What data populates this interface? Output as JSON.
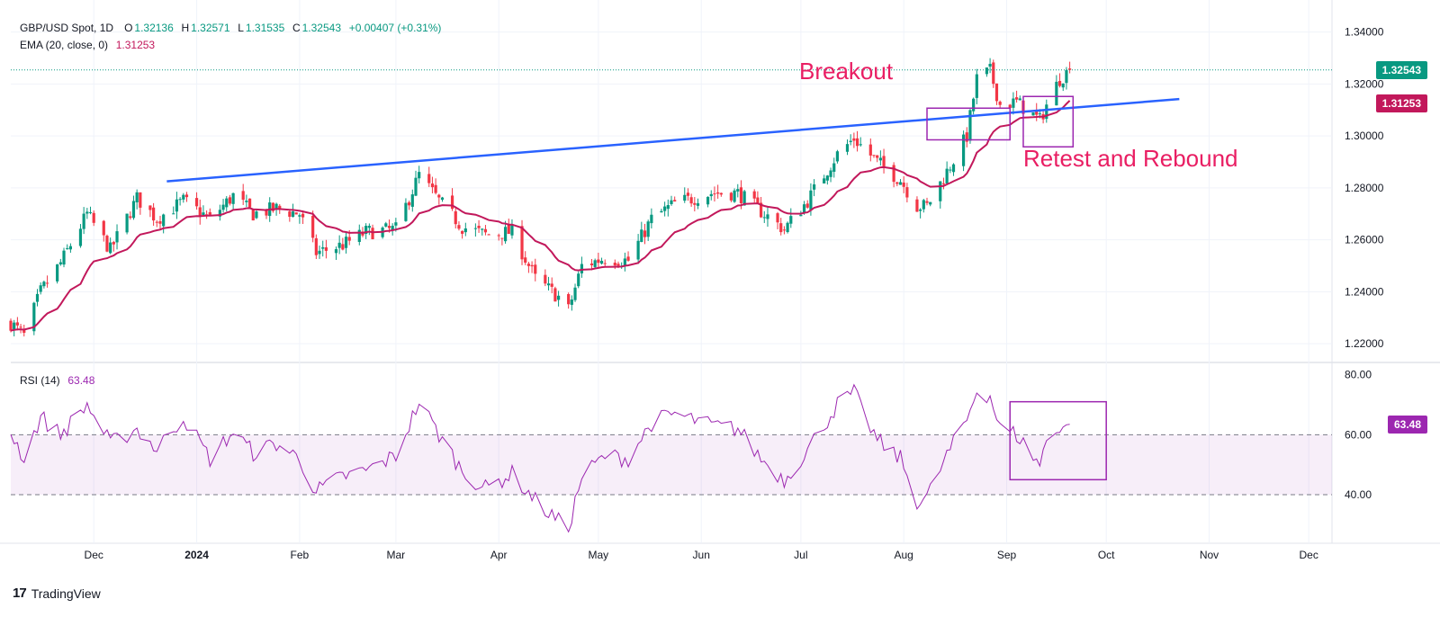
{
  "header": {
    "symbol": "GBP/USD Spot, 1D",
    "open_label": "O",
    "open": "1.32136",
    "high_label": "H",
    "high": "1.32571",
    "low_label": "L",
    "low": "1.31535",
    "close_label": "C",
    "close": "1.32543",
    "change": "+0.00407 (+0.31%)",
    "ema_label": "EMA (20, close, 0)",
    "ema_value": "1.31253",
    "rsi_label": "RSI (14)",
    "rsi_value": "63.48"
  },
  "annotations": {
    "breakout": "Breakout",
    "retest": "Retest and Rebound"
  },
  "price_tags": {
    "last": "1.32543",
    "ema": "1.31253",
    "rsi": "63.48"
  },
  "colors": {
    "up": "#089981",
    "down": "#f23645",
    "ema": "#c2185b",
    "trendline": "#2962ff",
    "rsi": "#9c27b0",
    "box": "#9c27b0",
    "annotation": "#e91e63"
  },
  "branding": {
    "name": "TradingView",
    "logo_text": "17"
  },
  "chart_data": [
    {
      "type": "candlestick",
      "title": "GBP/USD Spot, 1D",
      "y_ticks": [
        "1.34000",
        "1.32000",
        "1.30000",
        "1.28000",
        "1.26000",
        "1.24000",
        "1.22000"
      ],
      "ylim": [
        1.2145,
        1.3475
      ],
      "x_ticks": [
        "Dec",
        "2024",
        "Feb",
        "Mar",
        "Apr",
        "May",
        "Jun",
        "Jul",
        "Aug",
        "Sep",
        "Oct",
        "Nov",
        "Dec"
      ],
      "x_range": [
        "2023-11-06",
        "2024-12-08"
      ],
      "close_anchors": [
        [
          "2023-11-06",
          1.228
        ],
        [
          "2023-11-10",
          1.223
        ],
        [
          "2023-11-15",
          1.24
        ],
        [
          "2023-11-21",
          1.251
        ],
        [
          "2023-11-29",
          1.27
        ],
        [
          "2023-12-06",
          1.256
        ],
        [
          "2023-12-14",
          1.276
        ],
        [
          "2023-12-20",
          1.268
        ],
        [
          "2023-12-28",
          1.275
        ],
        [
          "2024-01-05",
          1.268
        ],
        [
          "2024-01-12",
          1.277
        ],
        [
          "2024-01-18",
          1.27
        ],
        [
          "2024-01-25",
          1.272
        ],
        [
          "2024-02-01",
          1.27
        ],
        [
          "2024-02-06",
          1.255
        ],
        [
          "2024-02-14",
          1.258
        ],
        [
          "2024-02-21",
          1.263
        ],
        [
          "2024-03-01",
          1.264
        ],
        [
          "2024-03-08",
          1.285
        ],
        [
          "2024-03-14",
          1.275
        ],
        [
          "2024-03-21",
          1.265
        ],
        [
          "2024-03-28",
          1.262
        ],
        [
          "2024-04-05",
          1.263
        ],
        [
          "2024-04-12",
          1.245
        ],
        [
          "2024-04-19",
          1.238
        ],
        [
          "2024-04-22",
          1.233
        ],
        [
          "2024-04-26",
          1.25
        ],
        [
          "2024-05-03",
          1.253
        ],
        [
          "2024-05-10",
          1.252
        ],
        [
          "2024-05-17",
          1.268
        ],
        [
          "2024-05-24",
          1.274
        ],
        [
          "2024-06-04",
          1.278
        ],
        [
          "2024-06-12",
          1.278
        ],
        [
          "2024-06-19",
          1.271
        ],
        [
          "2024-06-26",
          1.264
        ],
        [
          "2024-07-03",
          1.275
        ],
        [
          "2024-07-12",
          1.293
        ],
        [
          "2024-07-17",
          1.299
        ],
        [
          "2024-07-24",
          1.29
        ],
        [
          "2024-07-31",
          1.283
        ],
        [
          "2024-08-05",
          1.273
        ],
        [
          "2024-08-08",
          1.273
        ],
        [
          "2024-08-13",
          1.284
        ],
        [
          "2024-08-20",
          1.3
        ],
        [
          "2024-08-23",
          1.322
        ],
        [
          "2024-08-27",
          1.325
        ],
        [
          "2024-08-30",
          1.312
        ],
        [
          "2024-09-04",
          1.313
        ],
        [
          "2024-09-11",
          1.306
        ],
        [
          "2024-09-13",
          1.312
        ],
        [
          "2024-09-17",
          1.322
        ],
        [
          "2024-09-20",
          1.3254
        ]
      ],
      "ema_20_last": 1.31253,
      "last_close": 1.32543,
      "trendline": [
        [
          "2023-12-23",
          1.2825
        ],
        [
          "2024-10-23",
          1.3142
        ]
      ],
      "boxes": [
        {
          "x": [
            "2024-08-08",
            "2024-09-02"
          ],
          "y": [
            1.2985,
            1.3107
          ]
        },
        {
          "x": [
            "2024-09-06",
            "2024-09-21"
          ],
          "y": [
            1.2958,
            1.3152
          ]
        }
      ]
    },
    {
      "type": "line",
      "title": "RSI (14)",
      "y_ticks": [
        "80.00",
        "60.00",
        "40.00"
      ],
      "ylim": [
        25,
        82
      ],
      "guides": [
        60,
        40
      ],
      "x_range": [
        "2023-11-06",
        "2024-12-08"
      ],
      "anchors": [
        [
          "2023-11-06",
          61
        ],
        [
          "2023-11-10",
          52
        ],
        [
          "2023-11-15",
          66
        ],
        [
          "2023-11-21",
          60
        ],
        [
          "2023-11-29",
          70
        ],
        [
          "2023-12-06",
          57
        ],
        [
          "2023-12-14",
          62
        ],
        [
          "2023-12-20",
          55
        ],
        [
          "2023-12-28",
          66
        ],
        [
          "2024-01-05",
          52
        ],
        [
          "2024-01-12",
          61
        ],
        [
          "2024-01-18",
          54
        ],
        [
          "2024-01-25",
          57
        ],
        [
          "2024-02-01",
          52
        ],
        [
          "2024-02-06",
          41
        ],
        [
          "2024-02-14",
          46
        ],
        [
          "2024-02-21",
          48
        ],
        [
          "2024-03-01",
          53
        ],
        [
          "2024-03-08",
          71
        ],
        [
          "2024-03-14",
          60
        ],
        [
          "2024-03-21",
          48
        ],
        [
          "2024-03-28",
          42
        ],
        [
          "2024-04-05",
          47
        ],
        [
          "2024-04-12",
          38
        ],
        [
          "2024-04-19",
          31
        ],
        [
          "2024-04-22",
          29
        ],
        [
          "2024-04-26",
          46
        ],
        [
          "2024-05-03",
          53
        ],
        [
          "2024-05-10",
          52
        ],
        [
          "2024-05-17",
          64
        ],
        [
          "2024-05-24",
          67
        ],
        [
          "2024-06-04",
          63
        ],
        [
          "2024-06-12",
          62
        ],
        [
          "2024-06-19",
          52
        ],
        [
          "2024-06-26",
          45
        ],
        [
          "2024-07-03",
          55
        ],
        [
          "2024-07-12",
          70
        ],
        [
          "2024-07-17",
          74
        ],
        [
          "2024-07-24",
          58
        ],
        [
          "2024-07-31",
          52
        ],
        [
          "2024-08-05",
          38
        ],
        [
          "2024-08-08",
          39
        ],
        [
          "2024-08-13",
          51
        ],
        [
          "2024-08-20",
          65
        ],
        [
          "2024-08-23",
          75
        ],
        [
          "2024-08-27",
          73
        ],
        [
          "2024-08-30",
          62
        ],
        [
          "2024-09-04",
          60
        ],
        [
          "2024-09-11",
          50
        ],
        [
          "2024-09-13",
          58
        ],
        [
          "2024-09-17",
          63
        ],
        [
          "2024-09-20",
          63.48
        ]
      ],
      "last": 63.48,
      "box": {
        "x": [
          "2024-09-02",
          "2024-10-01"
        ],
        "y": [
          45,
          71
        ]
      }
    }
  ]
}
